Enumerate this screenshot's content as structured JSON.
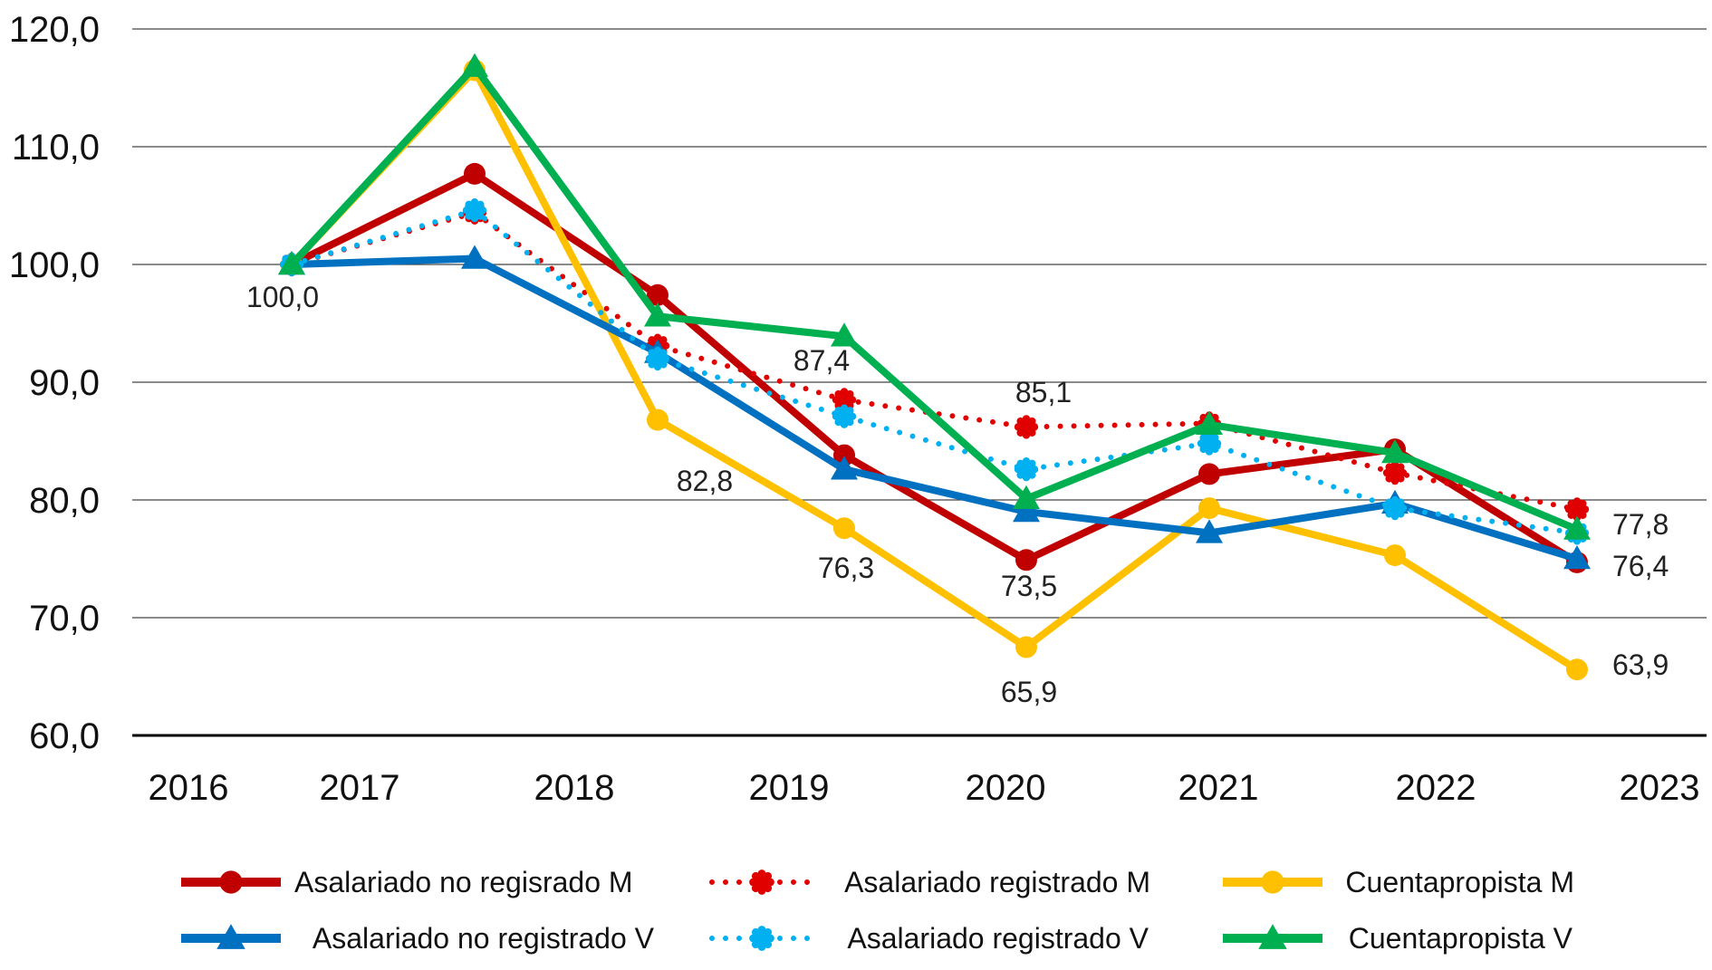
{
  "chart_data": {
    "type": "line",
    "title": "",
    "xlabel": "",
    "ylabel": "",
    "ylim": [
      60,
      120
    ],
    "y_ticks": [
      "60,0",
      "70,0",
      "80,0",
      "90,0",
      "100,0",
      "110,0",
      "120,0"
    ],
    "categories": [
      "2016",
      "2017",
      "2018",
      "2019",
      "2020",
      "2021",
      "2022",
      "2023"
    ],
    "series": [
      {
        "name": "Asalariado no regisrado M",
        "color": "#C00000",
        "style": "solid",
        "marker": "circle",
        "values": [
          100.0,
          107.7,
          97.4,
          83.8,
          74.9,
          82.2,
          84.3,
          74.7
        ]
      },
      {
        "name": "Asalariado registrado M",
        "color": "#E10000",
        "style": "dotted",
        "marker": "star",
        "values": [
          100.0,
          104.4,
          93.1,
          88.5,
          86.2,
          86.5,
          82.3,
          79.2
        ]
      },
      {
        "name": "Cuentapropista M",
        "color": "#FFC000",
        "style": "solid",
        "marker": "circle",
        "values": [
          100.0,
          116.5,
          86.8,
          77.6,
          67.5,
          79.3,
          75.3,
          65.6
        ]
      },
      {
        "name": "Asalariado no registrado V",
        "color": "#0070C0",
        "style": "solid",
        "marker": "triangle",
        "values": [
          100.0,
          100.5,
          92.5,
          82.6,
          79.0,
          77.2,
          79.7,
          75.0
        ]
      },
      {
        "name": "Asalariado registrado V",
        "color": "#00B0F0",
        "style": "dotted",
        "marker": "star",
        "values": [
          100.0,
          104.6,
          92.0,
          87.1,
          82.6,
          84.8,
          79.3,
          77.2
        ]
      },
      {
        "name": "Cuentapropista V",
        "color": "#00B050",
        "style": "solid",
        "marker": "triangle",
        "values": [
          100.0,
          116.8,
          95.6,
          93.9,
          80.1,
          86.4,
          84.0,
          77.5
        ]
      }
    ],
    "data_labels": [
      "100,0",
      "87,4",
      "85,1",
      "82,8",
      "76,3",
      "73,5",
      "65,9",
      "77,8",
      "76,4",
      "63,9"
    ],
    "legend_position": "bottom",
    "grid": true
  }
}
